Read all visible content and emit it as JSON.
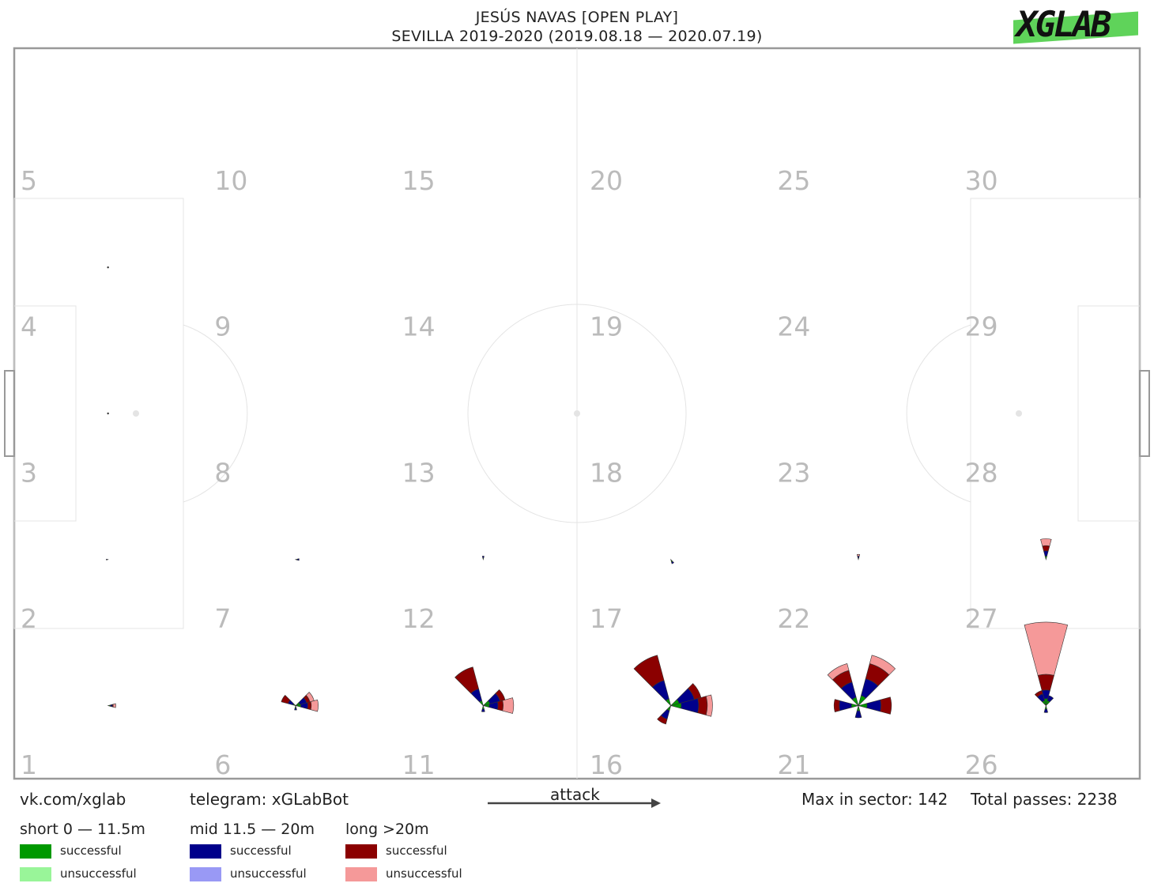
{
  "title": {
    "line1": "JESÚS NAVAS [OPEN PLAY]",
    "line2": "SEVILLA 2019-2020 (2019.08.18 — 2020.07.19)"
  },
  "logo": {
    "text": "XGLAB",
    "bar_color": "#5fd35a"
  },
  "footer": {
    "vk": "vk.com/xglab",
    "telegram": "telegram: xGLabBot",
    "attack": "attack",
    "max_in_sector": "Max in sector: 142",
    "total_passes": "Total passes: 2238"
  },
  "legend": {
    "groups": [
      {
        "title": "short 0 — 11.5m",
        "items": [
          {
            "label": "successful",
            "color": "#009900"
          },
          {
            "label": "unsuccessful",
            "color": "#99f599"
          }
        ]
      },
      {
        "title": "mid 11.5 — 20m",
        "items": [
          {
            "label": "successful",
            "color": "#00008b"
          },
          {
            "label": "unsuccessful",
            "color": "#9999f5"
          }
        ]
      },
      {
        "title": "long >20m",
        "items": [
          {
            "label": "successful",
            "color": "#8b0000"
          },
          {
            "label": "unsuccessful",
            "color": "#f59999"
          }
        ]
      }
    ]
  },
  "chart_data": {
    "type": "polar-sector-map",
    "title": "JESÚS NAVAS [OPEN PLAY]",
    "subtitle": "SEVILLA 2019-2020 (2019.08.18 — 2020.07.19)",
    "zone_labels": [
      "1",
      "2",
      "3",
      "4",
      "5",
      "6",
      "7",
      "8",
      "9",
      "10",
      "11",
      "12",
      "13",
      "14",
      "15",
      "16",
      "17",
      "18",
      "19",
      "20",
      "21",
      "22",
      "23",
      "24",
      "25",
      "26",
      "27",
      "28",
      "29",
      "30"
    ],
    "max_in_sector": 142,
    "total_passes": 2238,
    "zones": [
      {
        "zone": 1,
        "sectors": [
          {
            "angle": 0,
            "short": 3,
            "mid": 2,
            "long": 1,
            "unsuccessful_long": 3
          }
        ]
      },
      {
        "zone": 2,
        "sectors": [
          {
            "angle": 180,
            "short": 1,
            "mid": 1
          }
        ]
      },
      {
        "zone": 3,
        "sectors": []
      },
      {
        "zone": 4,
        "sectors": []
      },
      {
        "zone": 6,
        "sectors": [
          {
            "angle": 0,
            "short": 6,
            "mid": 8,
            "long": 4,
            "unsuccessful_long": 8
          },
          {
            "angle": 30,
            "short": 5,
            "mid": 8,
            "long": 4,
            "unsuccessful_long": 5
          },
          {
            "angle": 150,
            "short": 3,
            "mid": 6,
            "long": 8
          },
          {
            "angle": 270,
            "short": 3,
            "mid": 2
          }
        ]
      },
      {
        "zone": 7,
        "sectors": [
          {
            "angle": 0,
            "short": 2,
            "mid": 2
          }
        ]
      },
      {
        "zone": 11,
        "sectors": [
          {
            "angle": 0,
            "short": 7,
            "mid": 10,
            "long": 6,
            "unsuccessful_long": 12
          },
          {
            "angle": 30,
            "short": 8,
            "mid": 12,
            "long": 6
          },
          {
            "angle": 120,
            "short": 6,
            "mid": 14,
            "long": 26
          },
          {
            "angle": 270,
            "short": 4,
            "mid": 3
          }
        ]
      },
      {
        "zone": 12,
        "sectors": [
          {
            "angle": 90,
            "short": 2,
            "mid": 2
          }
        ]
      },
      {
        "zone": 16,
        "sectors": [
          {
            "angle": 0,
            "short": 12,
            "mid": 20,
            "long": 10,
            "unsuccessful_long": 6
          },
          {
            "angle": 30,
            "short": 10,
            "mid": 18,
            "long": 8
          },
          {
            "angle": 120,
            "short": 8,
            "mid": 22,
            "long": 30
          },
          {
            "angle": 240,
            "short": 6,
            "mid": 10,
            "long": 6
          }
        ]
      },
      {
        "zone": 17,
        "sectors": [
          {
            "angle": 300,
            "short": 3,
            "mid": 2
          }
        ]
      },
      {
        "zone": 21,
        "sectors": [
          {
            "angle": 0,
            "short": 10,
            "mid": 16,
            "long": 12
          },
          {
            "angle": 60,
            "short": 12,
            "mid": 20,
            "long": 18,
            "unsuccessful_long": 10
          },
          {
            "angle": 120,
            "short": 10,
            "mid": 18,
            "long": 14,
            "unsuccessful_long": 8
          },
          {
            "angle": 180,
            "short": 8,
            "mid": 14,
            "long": 6
          },
          {
            "angle": 270,
            "short": 6,
            "mid": 8
          }
        ]
      },
      {
        "zone": 22,
        "sectors": [
          {
            "angle": 90,
            "short": 2,
            "mid": 2,
            "unsuccessful_long": 2
          }
        ]
      },
      {
        "zone": 26,
        "sectors": [
          {
            "angle": 90,
            "short": 8,
            "mid": 10,
            "long": 18,
            "unsuccessful_long": 60
          },
          {
            "angle": 120,
            "short": 6,
            "mid": 8,
            "long": 4
          },
          {
            "angle": 60,
            "short": 6,
            "mid": 6
          },
          {
            "angle": 270,
            "short": 4,
            "mid": 4
          }
        ]
      },
      {
        "zone": 27,
        "sectors": [
          {
            "angle": 90,
            "short": 4,
            "mid": 6,
            "long": 6,
            "unsuccessful_long": 8
          }
        ]
      }
    ],
    "grid": false,
    "legend_placement": "bottom-left"
  }
}
